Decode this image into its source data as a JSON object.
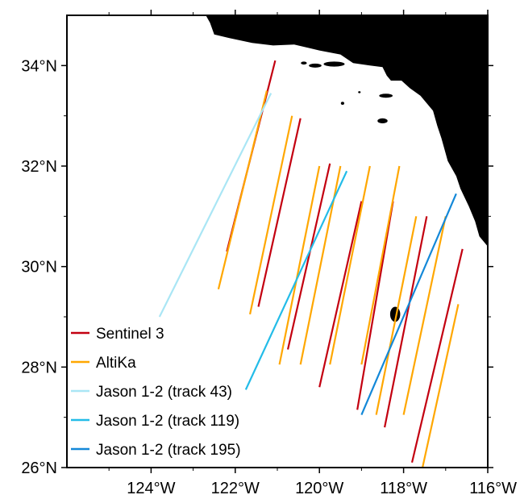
{
  "map": {
    "extent": {
      "lon_min": -126,
      "lon_max": -116,
      "lat_min": 26,
      "lat_max": 35
    },
    "lat_ticks": [
      {
        "value": 34,
        "label": "34°N"
      },
      {
        "value": 32,
        "label": "32°N"
      },
      {
        "value": 30,
        "label": "30°N"
      },
      {
        "value": 28,
        "label": "28°N"
      },
      {
        "value": 26,
        "label": "26°N"
      }
    ],
    "lon_ticks": [
      {
        "value": -124,
        "label": "124°W"
      },
      {
        "value": -122,
        "label": "122°W"
      },
      {
        "value": -120,
        "label": "120°W"
      },
      {
        "value": -118,
        "label": "118°W"
      },
      {
        "value": -116,
        "label": "116°W"
      }
    ],
    "land_color": "#000000",
    "ocean_color": "#ffffff",
    "coastline": [
      [
        -122.7,
        35.0
      ],
      [
        -122.6,
        34.85
      ],
      [
        -122.5,
        34.62
      ],
      [
        -122.15,
        34.55
      ],
      [
        -121.6,
        34.45
      ],
      [
        -121.1,
        34.4
      ],
      [
        -120.6,
        34.42
      ],
      [
        -120.0,
        34.3
      ],
      [
        -119.5,
        34.22
      ],
      [
        -119.2,
        34.05
      ],
      [
        -118.8,
        34.0
      ],
      [
        -118.5,
        33.97
      ],
      [
        -118.4,
        33.8
      ],
      [
        -118.3,
        33.7
      ],
      [
        -118.05,
        33.7
      ],
      [
        -117.85,
        33.55
      ],
      [
        -117.6,
        33.4
      ],
      [
        -117.3,
        33.1
      ],
      [
        -117.2,
        32.8
      ],
      [
        -117.1,
        32.55
      ],
      [
        -116.95,
        32.1
      ],
      [
        -116.75,
        31.8
      ],
      [
        -116.65,
        31.55
      ],
      [
        -116.45,
        31.2
      ],
      [
        -116.3,
        30.9
      ],
      [
        -116.2,
        30.6
      ],
      [
        -116.0,
        30.4
      ]
    ],
    "islands": [
      {
        "lon": -119.65,
        "lat": 34.03,
        "rx": 0.25,
        "ry": 0.05
      },
      {
        "lon": -120.1,
        "lat": 34.0,
        "rx": 0.15,
        "ry": 0.04
      },
      {
        "lon": -120.37,
        "lat": 34.05,
        "rx": 0.07,
        "ry": 0.03
      },
      {
        "lon": -118.42,
        "lat": 33.4,
        "rx": 0.16,
        "ry": 0.04
      },
      {
        "lon": -119.45,
        "lat": 33.25,
        "rx": 0.04,
        "ry": 0.03
      },
      {
        "lon": -119.05,
        "lat": 33.47,
        "rx": 0.03,
        "ry": 0.02
      },
      {
        "lon": -118.5,
        "lat": 32.9,
        "rx": 0.12,
        "ry": 0.05
      },
      {
        "lon": -118.2,
        "lat": 29.05,
        "rx": 0.12,
        "ry": 0.15
      }
    ]
  },
  "tracks": [
    {
      "mission": "sentinel3",
      "color": "#c30010",
      "points": [
        [
          -122.2,
          30.3
        ],
        [
          -121.05,
          34.1
        ]
      ]
    },
    {
      "mission": "sentinel3",
      "color": "#c30010",
      "points": [
        [
          -121.45,
          29.2
        ],
        [
          -120.45,
          32.95
        ]
      ]
    },
    {
      "mission": "sentinel3",
      "color": "#c30010",
      "points": [
        [
          -120.75,
          28.35
        ],
        [
          -119.75,
          32.05
        ]
      ]
    },
    {
      "mission": "sentinel3",
      "color": "#c30010",
      "points": [
        [
          -120.0,
          27.6
        ],
        [
          -119.0,
          31.3
        ]
      ]
    },
    {
      "mission": "sentinel3",
      "color": "#c30010",
      "points": [
        [
          -119.1,
          27.15
        ],
        [
          -118.25,
          31.3
        ]
      ]
    },
    {
      "mission": "sentinel3",
      "color": "#c30010",
      "points": [
        [
          -118.45,
          26.8
        ],
        [
          -117.45,
          31.0
        ]
      ]
    },
    {
      "mission": "sentinel3",
      "color": "#c30010",
      "points": [
        [
          -117.8,
          26.1
        ],
        [
          -116.6,
          30.35
        ]
      ]
    },
    {
      "mission": "altika",
      "color": "#ffa700",
      "points": [
        [
          -122.4,
          29.55
        ],
        [
          -121.25,
          33.5
        ]
      ]
    },
    {
      "mission": "altika",
      "color": "#ffa700",
      "points": [
        [
          -121.65,
          29.05
        ],
        [
          -120.65,
          33.0
        ]
      ]
    },
    {
      "mission": "altika",
      "color": "#ffa700",
      "points": [
        [
          -120.95,
          28.05
        ],
        [
          -120.0,
          32.0
        ]
      ]
    },
    {
      "mission": "altika",
      "color": "#ffa700",
      "points": [
        [
          -120.45,
          28.05
        ],
        [
          -119.5,
          32.0
        ]
      ]
    },
    {
      "mission": "altika",
      "color": "#ffa700",
      "points": [
        [
          -119.75,
          28.05
        ],
        [
          -118.8,
          32.0
        ]
      ]
    },
    {
      "mission": "altika",
      "color": "#ffa700",
      "points": [
        [
          -119.0,
          28.05
        ],
        [
          -118.1,
          32.0
        ]
      ]
    },
    {
      "mission": "altika",
      "color": "#ffa700",
      "points": [
        [
          -118.65,
          27.05
        ],
        [
          -117.7,
          31.0
        ]
      ]
    },
    {
      "mission": "altika",
      "color": "#ffa700",
      "points": [
        [
          -118.0,
          27.05
        ],
        [
          -117.0,
          31.0
        ]
      ]
    },
    {
      "mission": "altika",
      "color": "#ffa700",
      "points": [
        [
          -117.55,
          26.0
        ],
        [
          -116.7,
          29.25
        ]
      ]
    },
    {
      "mission": "jason-43",
      "color": "#aae6f5",
      "points": [
        [
          -123.8,
          29.0
        ],
        [
          -121.15,
          33.45
        ]
      ]
    },
    {
      "mission": "jason-119",
      "color": "#23bce8",
      "points": [
        [
          -121.75,
          27.55
        ],
        [
          -119.35,
          31.9
        ]
      ]
    },
    {
      "mission": "jason-195",
      "color": "#1388d8",
      "points": [
        [
          -119.0,
          27.05
        ],
        [
          -116.75,
          31.45
        ]
      ]
    }
  ],
  "legend": {
    "items": [
      {
        "label": "Sentinel 3",
        "color": "#c30010"
      },
      {
        "label": "AltiKa",
        "color": "#ffa700"
      },
      {
        "label": "Jason 1-2 (track 43)",
        "color": "#aae6f5"
      },
      {
        "label": "Jason 1-2 (track 119)",
        "color": "#23bce8"
      },
      {
        "label": "Jason 1-2 (track 195)",
        "color": "#1388d8"
      }
    ]
  }
}
